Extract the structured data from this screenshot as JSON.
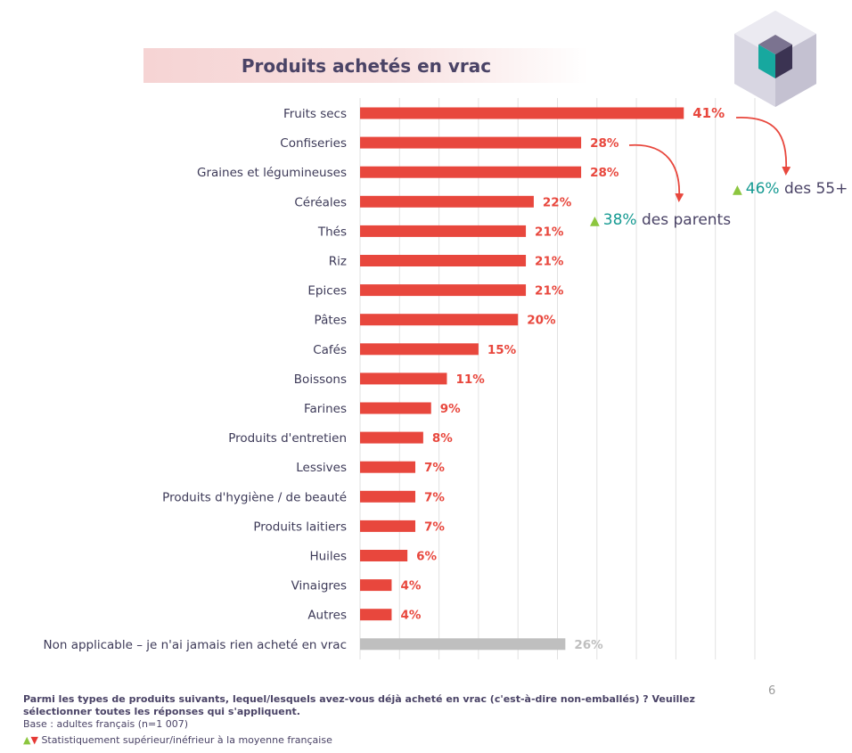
{
  "title": "Produits achetés en vrac",
  "slide_number": "6",
  "callouts": [
    {
      "pct": "46%",
      "text": "des 55+"
    },
    {
      "pct": "38%",
      "text": "des parents"
    }
  ],
  "footer": {
    "question": "Parmi les types de produits suivants, lequel/lesquels avez-vous déjà acheté en vrac (c'est-à-dire non-emballés) ? Veuillez sélectionner toutes les réponses qui s'appliquent.",
    "base": "Base : adultes français (n=1 007)",
    "legend_text": "Statistiquement supérieur/inéfrieur à la moyenne française"
  },
  "colors": {
    "bar": "#e8473d",
    "bar_na": "#bfbfbf",
    "label_na": "#bfbfbf",
    "up_marker": "#8cc63f",
    "down_marker": "#e53935",
    "accent_teal": "#159a92"
  },
  "chart_data": {
    "type": "bar",
    "orientation": "horizontal",
    "title": "Produits achetés en vrac",
    "categories": [
      "Fruits secs",
      "Confiseries",
      "Graines et légumineuses",
      "Céréales",
      "Thés",
      "Riz",
      "Epices",
      "Pâtes",
      "Cafés",
      "Boissons",
      "Farines",
      "Produits d'entretien",
      "Lessives",
      "Produits d'hygiène / de beauté",
      "Produits laitiers",
      "Huiles",
      "Vinaigres",
      "Autres",
      "Non applicable – je n'ai jamais rien acheté en vrac"
    ],
    "values": [
      41,
      28,
      28,
      22,
      21,
      21,
      21,
      20,
      15,
      11,
      9,
      8,
      7,
      7,
      7,
      6,
      4,
      4,
      26
    ],
    "value_labels": [
      "41%",
      "28%",
      "28%",
      "22%",
      "21%",
      "21%",
      "21%",
      "20%",
      "15%",
      "11%",
      "9%",
      "8%",
      "7%",
      "7%",
      "7%",
      "6%",
      "4%",
      "4%",
      "26%"
    ],
    "xlim": [
      0,
      50
    ],
    "grid": true,
    "unit": "%"
  }
}
